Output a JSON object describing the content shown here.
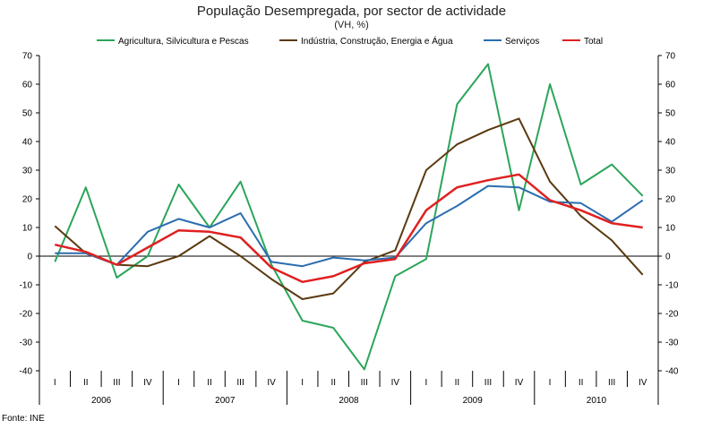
{
  "chart_data": {
    "type": "line",
    "title": "População Desempregada, por sector de actividade",
    "subtitle": "(VH, %)",
    "source": "Fonte: INE",
    "ylim": [
      -40,
      70
    ],
    "yticks": [
      -40,
      -30,
      -20,
      -10,
      0,
      10,
      20,
      30,
      40,
      50,
      60,
      70
    ],
    "quarters": [
      "I",
      "II",
      "III",
      "IV",
      "I",
      "II",
      "III",
      "IV",
      "I",
      "II",
      "III",
      "IV",
      "I",
      "II",
      "III",
      "IV",
      "I",
      "II",
      "III",
      "IV"
    ],
    "years": [
      "2006",
      "2007",
      "2008",
      "2009",
      "2010"
    ],
    "legend_position": "top",
    "series": [
      {
        "name": "Agricultura, Silvicultura e Pescas",
        "color": "#2ca55a",
        "values": [
          -2,
          24,
          -7.5,
          0,
          25,
          10,
          26,
          -3,
          -22.5,
          -25,
          -39.5,
          -7,
          -1,
          53,
          67,
          16,
          60,
          25,
          32,
          21
        ]
      },
      {
        "name": "Indústria, Construção, Energia e Água",
        "color": "#5a3a10",
        "values": [
          10.5,
          1,
          -3,
          -3.5,
          0,
          7,
          0,
          -8,
          -15,
          -13,
          -2,
          2,
          30,
          39,
          44,
          48,
          26,
          14,
          5.5,
          -6.5
        ]
      },
      {
        "name": "Serviços",
        "color": "#2a6db0",
        "values": [
          1,
          1,
          -3,
          8.5,
          13,
          10,
          15,
          -2,
          -3.5,
          -0.5,
          -1.5,
          -0.5,
          11.5,
          17.5,
          24.5,
          24,
          19,
          18.5,
          12,
          19.5
        ]
      },
      {
        "name": "Total",
        "color": "#e02020",
        "values": [
          4,
          1.5,
          -3,
          3,
          9,
          8.5,
          6.5,
          -4,
          -9,
          -7,
          -2.5,
          -1,
          16,
          24,
          26.5,
          28.5,
          19.5,
          16,
          11.5,
          10
        ]
      }
    ]
  }
}
